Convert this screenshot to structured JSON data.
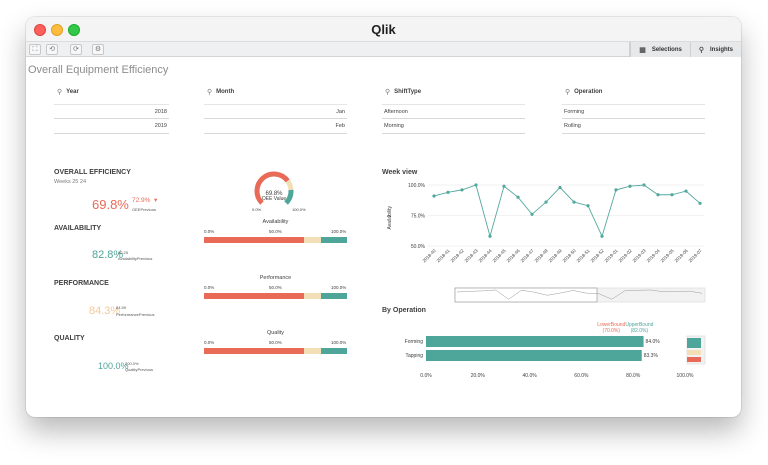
{
  "app": {
    "title": "Qlik"
  },
  "toolbar": {
    "buttons": [
      "⛶",
      "⟲",
      "⟳",
      "⚙"
    ],
    "selections_label": "Selections",
    "insights_label": "Insights"
  },
  "sheet": {
    "title": "Overall Equipment Efficiency"
  },
  "filters": [
    {
      "label": "Year",
      "values": [
        "2018",
        "2019"
      ],
      "align": "right"
    },
    {
      "label": "Month",
      "values": [
        "Jan",
        "Feb"
      ],
      "align": "right"
    },
    {
      "label": "ShiftType",
      "values": [
        "Afternoon",
        "Morning"
      ],
      "align": "left"
    },
    {
      "label": "Operation",
      "values": [
        "Forming",
        "Rolling"
      ],
      "align": "left"
    }
  ],
  "kpis": {
    "overall": {
      "title": "OVERALL EFFICIENCY",
      "subtitle": "Weeks 25 24",
      "value": "69.8%",
      "compare_value": "72.9%",
      "compare_arrow": "▾",
      "compare_label": "OEEPrevious"
    },
    "availability": {
      "title": "AVAILABILITY",
      "value": "82.8%",
      "compare_value": "80.25",
      "compare_label": "AvailabilityPrevious"
    },
    "performance": {
      "title": "PERFORMANCE",
      "value": "84.3%",
      "compare_value": "84.59",
      "compare_label": "PerformancePrevious"
    },
    "quality": {
      "title": "QUALITY",
      "value": "100.0%",
      "compare_value": "100.0%",
      "compare_label": "QualityPrevious"
    }
  },
  "gauge": {
    "value_label": "69.8%",
    "caption": "OEE Value",
    "min_label": "0.0%",
    "max_label": "100.0%",
    "value": 0.698
  },
  "bullets": [
    {
      "title": "Availability",
      "axis": [
        "0.0%",
        "50.0%",
        "100.0%"
      ],
      "segments": [
        0.7,
        0.12,
        0.18
      ]
    },
    {
      "title": "Performance",
      "axis": [
        "0.0%",
        "50.0%",
        "100.0%"
      ],
      "segments": [
        0.7,
        0.12,
        0.18
      ]
    },
    {
      "title": "Quality",
      "axis": [
        "0.0%",
        "50.0%",
        "100.0%"
      ],
      "segments": [
        0.7,
        0.12,
        0.18
      ]
    }
  ],
  "colors": {
    "red": "#e86a57",
    "orange": "#f4a582",
    "beige": "#f2dfb5",
    "teal": "#4ea59a",
    "line": "#53a89e",
    "grid": "#e6e6e6"
  },
  "week_view": {
    "title": "Week view",
    "ylabel": "Availability",
    "yticks": [
      "100.0%",
      "75.0%",
      "50.0%"
    ],
    "ylim": [
      50,
      100
    ]
  },
  "by_operation": {
    "title": "By Operation",
    "lower_label": "LowerBound",
    "lower_value": "(70.0%)",
    "upper_label": "UpperBound",
    "upper_value": "(82.0%)",
    "xticks": [
      "0.0%",
      "20.0%",
      "40.0%",
      "60.0%",
      "80.0%",
      "100.0%"
    ]
  },
  "chart_data": [
    {
      "type": "line",
      "title": "Week view",
      "ylabel": "Availability",
      "ylim": [
        50,
        100
      ],
      "x": [
        "2018-40",
        "2018-41",
        "2018-42",
        "2018-43",
        "2018-44",
        "2018-45",
        "2018-46",
        "2018-47",
        "2018-48",
        "2018-49",
        "2018-50",
        "2018-51",
        "2018-52",
        "2019-01",
        "2019-02",
        "2019-03",
        "2019-04",
        "2019-05",
        "2019-06",
        "2019-07"
      ],
      "series": [
        {
          "values": [
            91,
            94,
            96,
            100,
            58,
            99,
            90,
            76,
            86,
            98,
            86,
            83,
            58,
            96,
            99,
            100,
            92,
            92,
            95,
            85
          ]
        }
      ],
      "grid": true
    },
    {
      "type": "bar",
      "title": "By Operation",
      "orientation": "horizontal",
      "categories": [
        "Forming",
        "Tapping"
      ],
      "values": [
        84.0,
        83.3
      ],
      "value_labels": [
        "84.0%",
        "83.3%"
      ],
      "xlim": [
        0,
        100
      ],
      "reference_lines": [
        {
          "label": "LowerBound",
          "value": 70
        },
        {
          "label": "UpperBound",
          "value": 82
        }
      ]
    }
  ]
}
